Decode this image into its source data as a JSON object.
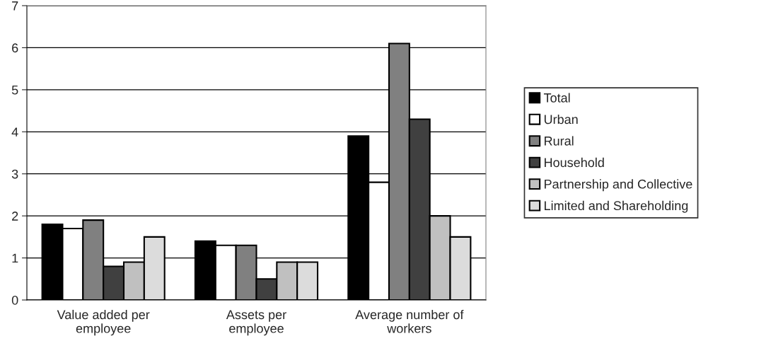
{
  "chart_data": {
    "type": "bar",
    "categories": [
      "Value added per\nemployee",
      "Assets per\nemployee",
      "Average number of\nworkers"
    ],
    "series": [
      {
        "name": "Total",
        "color": "#000000",
        "values": [
          1.8,
          1.4,
          3.9
        ]
      },
      {
        "name": "Urban",
        "color": "#ffffff",
        "values": [
          1.7,
          1.3,
          2.8
        ]
      },
      {
        "name": "Rural",
        "color": "#808080",
        "values": [
          1.9,
          1.3,
          6.1
        ]
      },
      {
        "name": "Household",
        "color": "#404040",
        "values": [
          0.8,
          0.5,
          4.3
        ]
      },
      {
        "name": "Partnership and Collective",
        "color": "#c0c0c0",
        "values": [
          0.9,
          0.9,
          2.0
        ]
      },
      {
        "name": "Limited and Shareholding",
        "color": "#dcdcdc",
        "values": [
          1.5,
          0.9,
          1.5
        ]
      }
    ],
    "ylim": [
      0,
      7
    ],
    "yticks": [
      0,
      1,
      2,
      3,
      4,
      5,
      6,
      7
    ],
    "grid": "y",
    "legend": "right"
  }
}
